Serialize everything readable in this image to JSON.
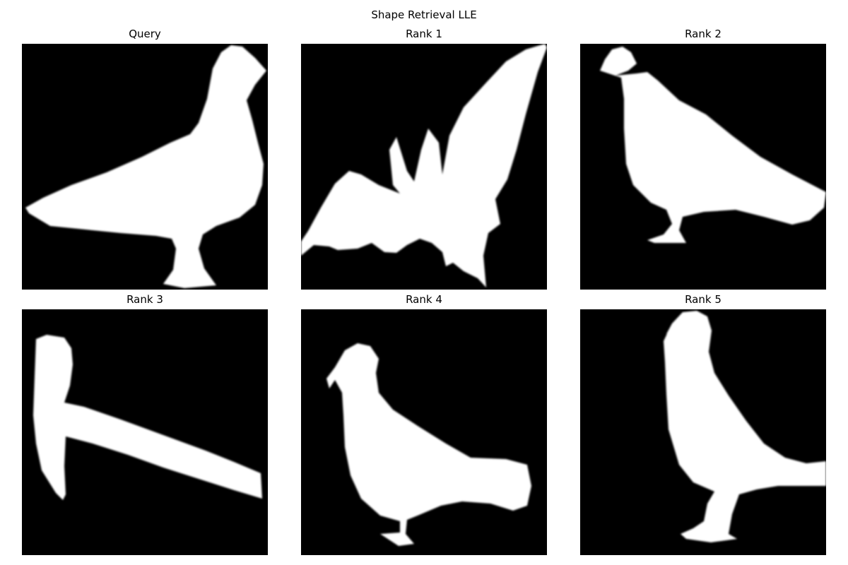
{
  "figure": {
    "title": "Shape Retrieval LLE",
    "panels": [
      {
        "label": "Query",
        "shape": "pigeon-facing-right"
      },
      {
        "label": "Rank 1",
        "shape": "bat"
      },
      {
        "label": "Rank 2",
        "shape": "pigeon-facing-left"
      },
      {
        "label": "Rank 3",
        "shape": "hammer"
      },
      {
        "label": "Rank 4",
        "shape": "pigeon-facing-left"
      },
      {
        "label": "Rank 5",
        "shape": "pigeon-facing-left-upright"
      }
    ],
    "colors": {
      "background": "#000000",
      "shape": "#ffffff"
    }
  }
}
